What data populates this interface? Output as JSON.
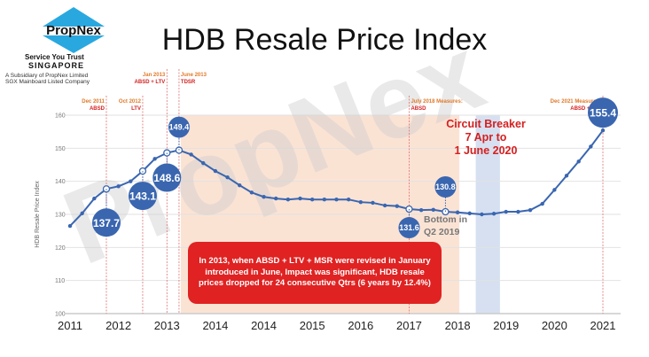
{
  "logo": {
    "brand": "PropNex",
    "tagline": "Service You Trust",
    "country": "SINGAPORE",
    "subsidiary_line1": "A Subsidiary of PropNex Limited",
    "subsidiary_line2": "SGX Mainboard Listed Company",
    "colors": {
      "diamond": "#29a8e0",
      "text": "#111111"
    }
  },
  "watermark": "PropNex",
  "chart_data": {
    "type": "line",
    "title": "HDB Resale Price Index",
    "xlabel": "",
    "ylabel": "HDB Resale Price Index",
    "ylim": [
      100,
      160
    ],
    "yticks": [
      100,
      110,
      120,
      130,
      140,
      150,
      160
    ],
    "x_tick_labels": [
      "2011",
      "2012",
      "2013",
      "2014",
      "2014",
      "2015",
      "2016",
      "2017",
      "2018",
      "2019",
      "2020",
      "2021"
    ],
    "grid": true,
    "series": [
      {
        "name": "HDB Resale Price Index",
        "color": "#3a66b0",
        "values": [
          126.5,
          130.3,
          134.8,
          137.7,
          138.5,
          140.0,
          143.1,
          146.8,
          148.6,
          149.4,
          148.1,
          145.5,
          143.1,
          141.2,
          138.8,
          136.6,
          135.3,
          134.8,
          134.5,
          134.8,
          134.5,
          134.5,
          134.5,
          134.5,
          133.7,
          133.5,
          132.7,
          132.5,
          131.6,
          131.3,
          131.4,
          130.8,
          130.6,
          130.3,
          130.0,
          130.2,
          130.8,
          130.8,
          131.3,
          133.2,
          137.4,
          141.7,
          146.0,
          150.5,
          155.4
        ]
      }
    ],
    "highlighted_points": [
      {
        "index": 3,
        "label": "137.7"
      },
      {
        "index": 6,
        "label": "143.1"
      },
      {
        "index": 8,
        "label": "148.6"
      },
      {
        "index": 9,
        "label": "149.4"
      },
      {
        "index": 28,
        "label": "131.6"
      },
      {
        "index": 31,
        "label": "130.8"
      },
      {
        "index": 44,
        "label": "155.4"
      }
    ],
    "annotations": {
      "policy_lines": [
        {
          "date": "Dec 2011",
          "measure": "ABSD",
          "index": 3
        },
        {
          "date": "Oct 2012",
          "measure": "LTV",
          "index": 6
        },
        {
          "date": "Jan 2013",
          "measure": "ABSD + LTV",
          "index": 8
        },
        {
          "date": "June 2013",
          "measure": "TDSR",
          "index": 9
        },
        {
          "date": "July 2018 Measures:",
          "measure": "ABSD",
          "index": 28
        },
        {
          "date": "Dec 2021 Measures:",
          "measure": "ABSD + LTV",
          "index": 44
        }
      ],
      "decline_period": {
        "from_index": 9,
        "to_index": 32,
        "color": "#fbe3d4"
      },
      "circuit_breaker": {
        "lines": [
          "Circuit Breaker",
          "7 Apr to",
          "1 June 2020"
        ],
        "from_index": 33.5,
        "to_index": 35.5,
        "color": "#d6e0f0"
      },
      "bottom_note": [
        "Bottom in",
        "Q2 2019"
      ],
      "callout": "In 2013, when ABSD + LTV + MSR were revised in January introduced in June, Impact was significant, HDB resale prices dropped for 24 consecutive Qtrs (6 years by 12.4%)"
    }
  }
}
